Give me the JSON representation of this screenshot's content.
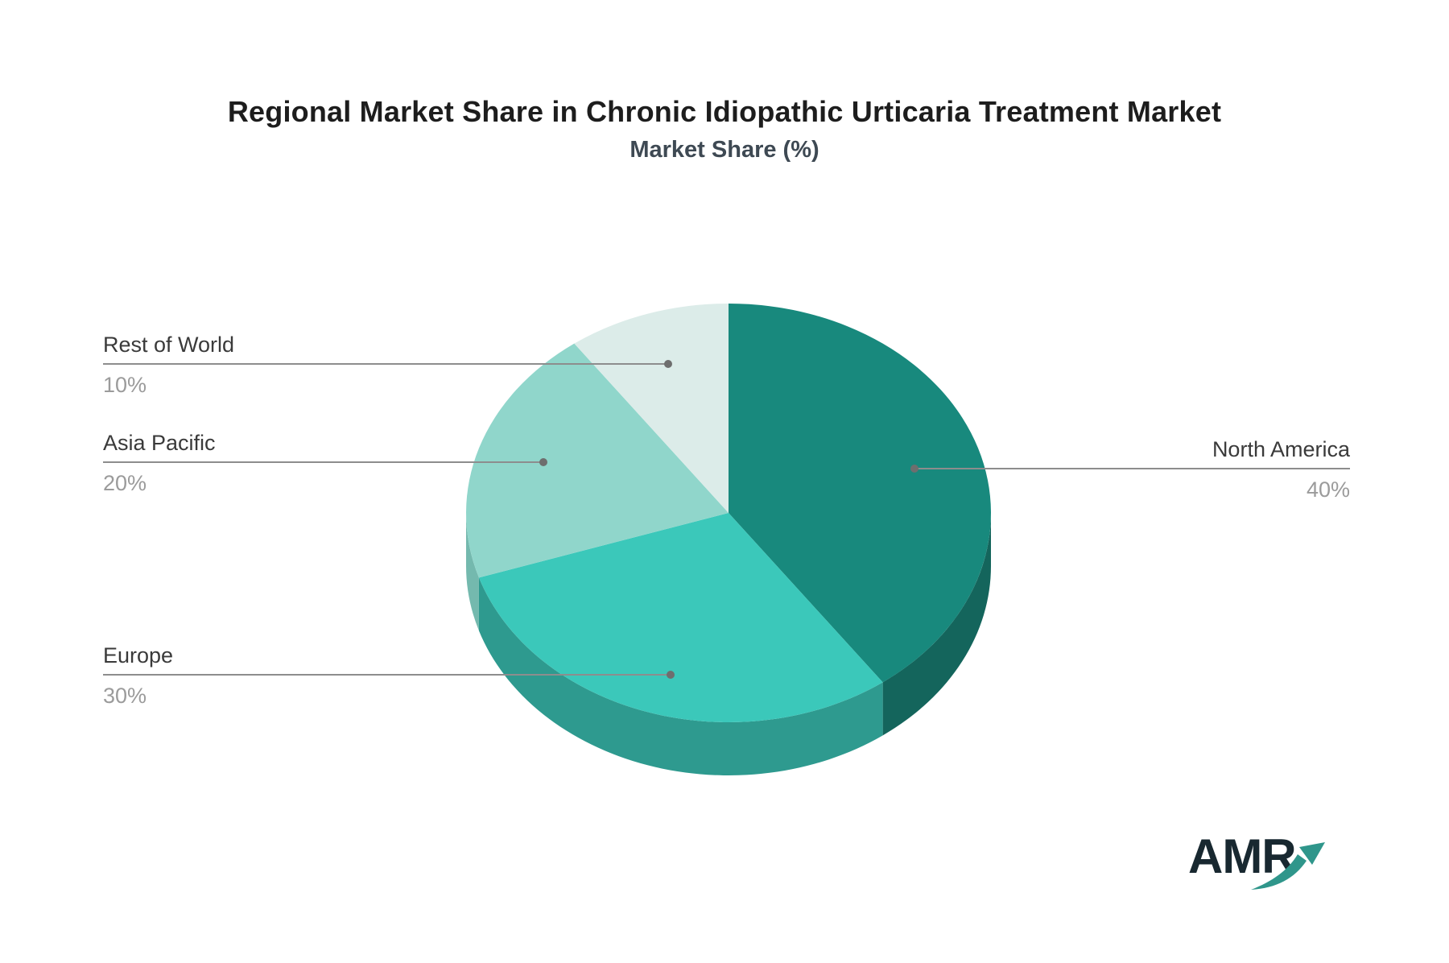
{
  "title": "Regional Market Share in Chronic Idiopathic Urticaria Treatment Market",
  "subtitle": "Market Share (%)",
  "logo": {
    "text": "AMR"
  },
  "colors": {
    "background": "#ffffff",
    "title": "#1d1d1d",
    "subtitle": "#3e4953",
    "label_text": "#3a3a3a",
    "percent_text": "#9b9b9b",
    "leader_line": "#8d8d8d",
    "leader_dot": "#6e6e6e",
    "logo_text": "#182830",
    "logo_arrow": "#2f968b"
  },
  "chart_data": {
    "type": "pie",
    "title": "Regional Market Share in Chronic Idiopathic Urticaria Treatment Market",
    "subtitle": "Market Share (%)",
    "unit": "percent",
    "effect": "3d",
    "start_angle_deg": 0,
    "direction": "clockwise",
    "legend_position": "callout-labels",
    "slices": [
      {
        "label": "North America",
        "value": 40,
        "value_label": "40%",
        "color": "#18897D",
        "side_color": "#14655C",
        "callout_side": "right"
      },
      {
        "label": "Europe",
        "value": 30,
        "value_label": "30%",
        "color": "#3BC8BA",
        "side_color": "#2E9A8F",
        "callout_side": "left"
      },
      {
        "label": "Asia Pacific",
        "value": 20,
        "value_label": "20%",
        "color": "#90D6CB",
        "side_color": "#74B9AE",
        "callout_side": "left"
      },
      {
        "label": "Rest of World",
        "value": 10,
        "value_label": "10%",
        "color": "#DCECE9",
        "side_color": "#C2D8D3",
        "callout_side": "left"
      }
    ]
  }
}
